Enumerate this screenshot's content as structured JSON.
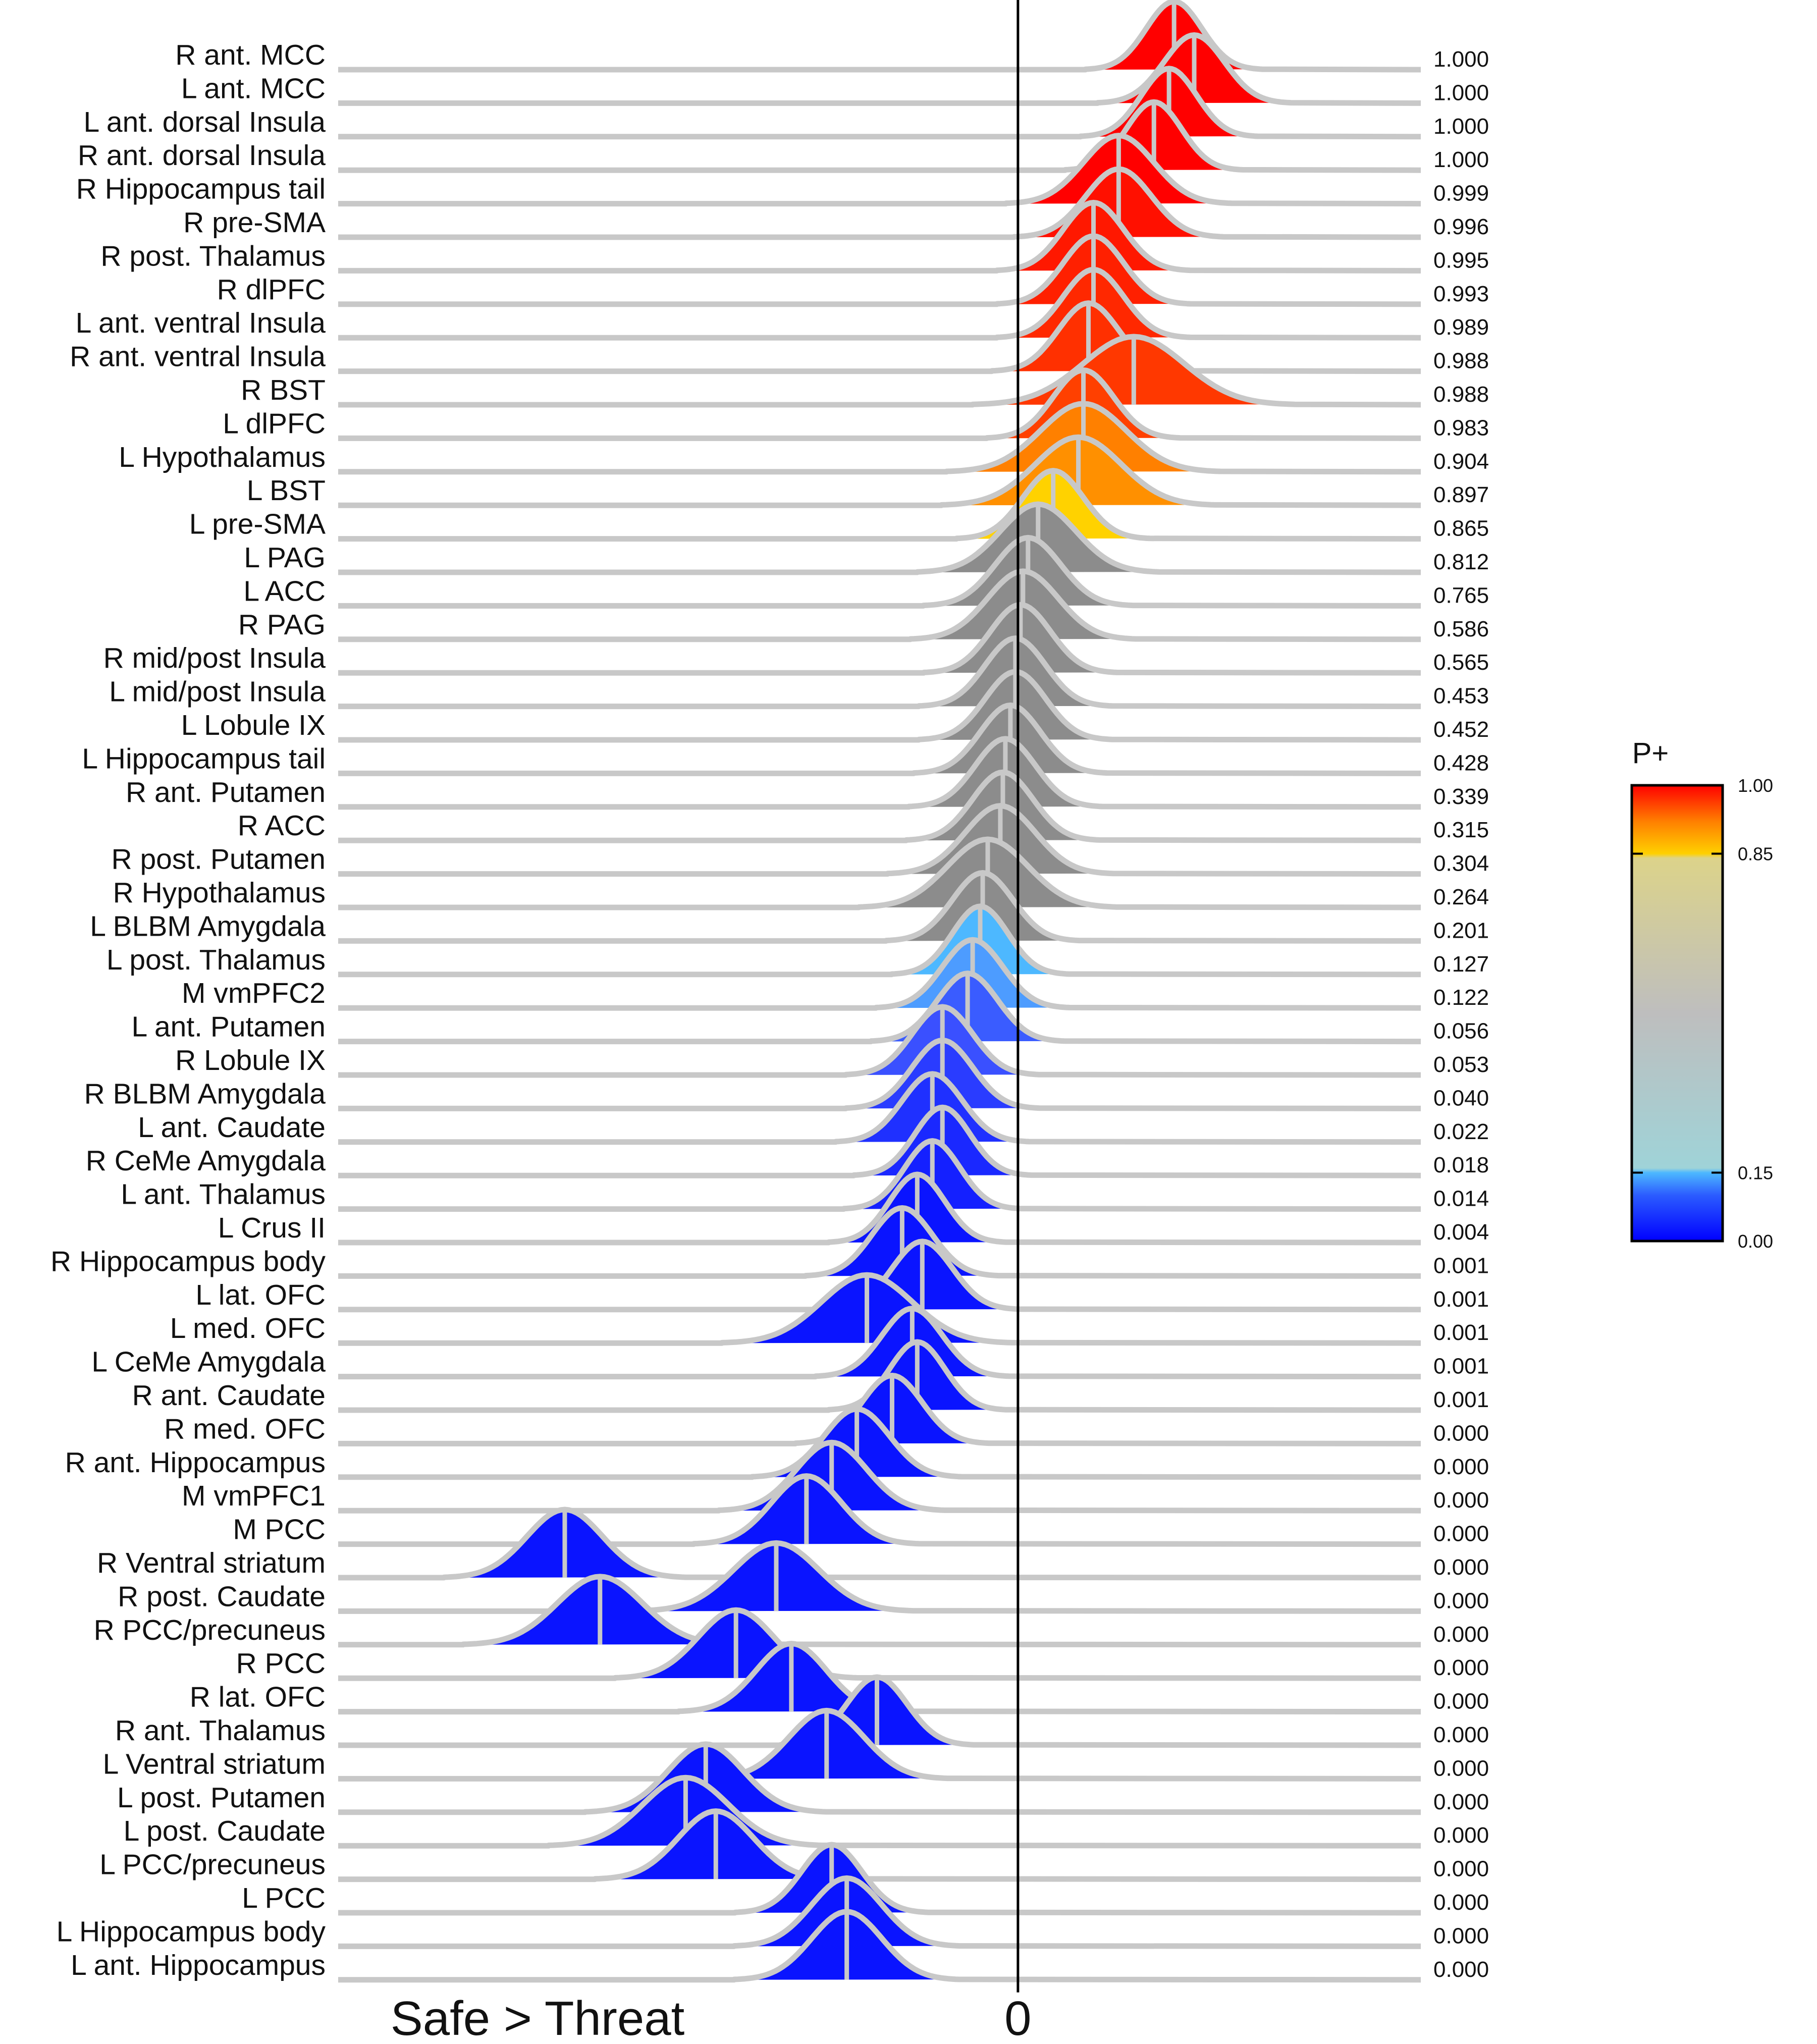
{
  "chart_data": {
    "type": "ridgeline",
    "title": "",
    "xlabel": "Safe > Threat",
    "zero_label": "0",
    "xlim": [
      -1.35,
      0.8
    ],
    "colorbar": {
      "title": "P+",
      "ticks": [
        "1.00",
        "0.85",
        "0.15",
        "0.00"
      ],
      "tick_values": [
        1.0,
        0.85,
        0.15,
        0.0
      ]
    },
    "colors": {
      "red": "#ff0000",
      "orange": "#ff8000",
      "yellow": "#ffd200",
      "gray": "#8c8c8c",
      "lightblue": "#4db8ff",
      "blue": "#0a14ff",
      "outline": "#c8c8c8"
    },
    "rows": [
      {
        "label": "R ant. MCC",
        "p": "1.000",
        "mean": 0.31,
        "sd": 0.055,
        "color": "#ff0000"
      },
      {
        "label": "L ant. MCC",
        "p": "1.000",
        "mean": 0.35,
        "sd": 0.06,
        "color": "#ff0000"
      },
      {
        "label": "L ant. dorsal Insula",
        "p": "1.000",
        "mean": 0.3,
        "sd": 0.055,
        "color": "#ff0000"
      },
      {
        "label": "R ant. dorsal Insula",
        "p": "1.000",
        "mean": 0.27,
        "sd": 0.055,
        "color": "#ff0000"
      },
      {
        "label": "R Hippocampus tail",
        "p": "0.999",
        "mean": 0.2,
        "sd": 0.07,
        "color": "#ff0000"
      },
      {
        "label": "R pre-SMA",
        "p": "0.996",
        "mean": 0.2,
        "sd": 0.065,
        "color": "#ff1000"
      },
      {
        "label": "R post. Thalamus",
        "p": "0.995",
        "mean": 0.15,
        "sd": 0.06,
        "color": "#ff1800"
      },
      {
        "label": "R dlPFC",
        "p": "0.993",
        "mean": 0.15,
        "sd": 0.06,
        "color": "#ff2000"
      },
      {
        "label": "L ant. ventral Insula",
        "p": "0.989",
        "mean": 0.15,
        "sd": 0.06,
        "color": "#ff2800"
      },
      {
        "label": "R ant. ventral Insula",
        "p": "0.988",
        "mean": 0.14,
        "sd": 0.06,
        "color": "#ff3000"
      },
      {
        "label": "R BST",
        "p": "0.988",
        "mean": 0.23,
        "sd": 0.1,
        "color": "#ff3800"
      },
      {
        "label": "L dlPFC",
        "p": "0.983",
        "mean": 0.13,
        "sd": 0.06,
        "color": "#ff4000"
      },
      {
        "label": "L Hypothalamus",
        "p": "0.904",
        "mean": 0.13,
        "sd": 0.085,
        "color": "#ff8000"
      },
      {
        "label": "L BST",
        "p": "0.897",
        "mean": 0.12,
        "sd": 0.085,
        "color": "#ff9000"
      },
      {
        "label": "L pre-SMA",
        "p": "0.865",
        "mean": 0.07,
        "sd": 0.06,
        "color": "#ffd200"
      },
      {
        "label": "L PAG",
        "p": "0.812",
        "mean": 0.04,
        "sd": 0.075,
        "color": "#8c8c8c"
      },
      {
        "label": "L ACC",
        "p": "0.765",
        "mean": 0.02,
        "sd": 0.065,
        "color": "#8c8c8c"
      },
      {
        "label": "R PAG",
        "p": "0.586",
        "mean": 0.01,
        "sd": 0.07,
        "color": "#8c8c8c"
      },
      {
        "label": "R mid/post Insula",
        "p": "0.565",
        "mean": 0.005,
        "sd": 0.06,
        "color": "#8c8c8c"
      },
      {
        "label": "L mid/post Insula",
        "p": "0.453",
        "mean": -0.005,
        "sd": 0.06,
        "color": "#8c8c8c"
      },
      {
        "label": "L Lobule IX",
        "p": "0.452",
        "mean": -0.005,
        "sd": 0.06,
        "color": "#8c8c8c"
      },
      {
        "label": "L Hippocampus tail",
        "p": "0.428",
        "mean": -0.015,
        "sd": 0.06,
        "color": "#8c8c8c"
      },
      {
        "label": "R ant. Putamen",
        "p": "0.339",
        "mean": -0.025,
        "sd": 0.06,
        "color": "#8c8c8c"
      },
      {
        "label": "R ACC",
        "p": "0.315",
        "mean": -0.03,
        "sd": 0.06,
        "color": "#8c8c8c"
      },
      {
        "label": "R post. Putamen",
        "p": "0.304",
        "mean": -0.035,
        "sd": 0.07,
        "color": "#8c8c8c"
      },
      {
        "label": "R Hypothalamus",
        "p": "0.264",
        "mean": -0.06,
        "sd": 0.08,
        "color": "#8c8c8c"
      },
      {
        "label": "L BLBM Amygdala",
        "p": "0.201",
        "mean": -0.07,
        "sd": 0.06,
        "color": "#8c8c8c"
      },
      {
        "label": "L post. Thalamus",
        "p": "0.127",
        "mean": -0.075,
        "sd": 0.055,
        "color": "#4db8ff"
      },
      {
        "label": "M vmPFC2",
        "p": "0.122",
        "mean": -0.09,
        "sd": 0.06,
        "color": "#4d9cff"
      },
      {
        "label": "L ant. Putamen",
        "p": "0.056",
        "mean": -0.1,
        "sd": 0.06,
        "color": "#3a5cff"
      },
      {
        "label": "R Lobule IX",
        "p": "0.053",
        "mean": -0.15,
        "sd": 0.06,
        "color": "#3a50ff"
      },
      {
        "label": "R BLBM Amygdala",
        "p": "0.040",
        "mean": -0.15,
        "sd": 0.06,
        "color": "#2a3cff"
      },
      {
        "label": "L ant. Caudate",
        "p": "0.022",
        "mean": -0.17,
        "sd": 0.06,
        "color": "#1f30ff"
      },
      {
        "label": "R CeMe Amygdala",
        "p": "0.018",
        "mean": -0.15,
        "sd": 0.055,
        "color": "#1a28ff"
      },
      {
        "label": "L ant. Thalamus",
        "p": "0.014",
        "mean": -0.17,
        "sd": 0.055,
        "color": "#1420ff"
      },
      {
        "label": "L Crus II",
        "p": "0.004",
        "mean": -0.2,
        "sd": 0.055,
        "color": "#0a14ff"
      },
      {
        "label": "R Hippocampus body",
        "p": "0.001",
        "mean": -0.23,
        "sd": 0.06,
        "color": "#0a14ff"
      },
      {
        "label": "L lat. OFC",
        "p": "0.001",
        "mean": -0.19,
        "sd": 0.06,
        "color": "#0a14ff"
      },
      {
        "label": "L med. OFC",
        "p": "0.001",
        "mean": -0.3,
        "sd": 0.09,
        "color": "#0a14ff"
      },
      {
        "label": "L CeMe Amygdala",
        "p": "0.001",
        "mean": -0.21,
        "sd": 0.06,
        "color": "#0a14ff"
      },
      {
        "label": "R ant. Caudate",
        "p": "0.001",
        "mean": -0.2,
        "sd": 0.055,
        "color": "#0a14ff"
      },
      {
        "label": "R med. OFC",
        "p": "0.000",
        "mean": -0.25,
        "sd": 0.06,
        "color": "#0a14ff"
      },
      {
        "label": "R ant. Hippocampus",
        "p": "0.000",
        "mean": -0.32,
        "sd": 0.065,
        "color": "#0a14ff"
      },
      {
        "label": "M vmPFC1",
        "p": "0.000",
        "mean": -0.37,
        "sd": 0.07,
        "color": "#0a14ff"
      },
      {
        "label": "M PCC",
        "p": "0.000",
        "mean": -0.42,
        "sd": 0.07,
        "color": "#0a14ff"
      },
      {
        "label": "R Ventral striatum",
        "p": "0.000",
        "mean": -0.9,
        "sd": 0.075,
        "color": "#0a14ff"
      },
      {
        "label": "R post. Caudate",
        "p": "0.000",
        "mean": -0.48,
        "sd": 0.085,
        "color": "#0a14ff"
      },
      {
        "label": "R PCC/precuneus",
        "p": "0.000",
        "mean": -0.83,
        "sd": 0.085,
        "color": "#0a14ff"
      },
      {
        "label": "R PCC",
        "p": "0.000",
        "mean": -0.56,
        "sd": 0.075,
        "color": "#0a14ff"
      },
      {
        "label": "R lat. OFC",
        "p": "0.000",
        "mean": -0.45,
        "sd": 0.07,
        "color": "#0a14ff"
      },
      {
        "label": "R ant. Thalamus",
        "p": "0.000",
        "mean": -0.28,
        "sd": 0.06,
        "color": "#0a14ff"
      },
      {
        "label": "L Ventral striatum",
        "p": "0.000",
        "mean": -0.38,
        "sd": 0.075,
        "color": "#0a14ff"
      },
      {
        "label": "L post. Putamen",
        "p": "0.000",
        "mean": -0.62,
        "sd": 0.075,
        "color": "#0a14ff"
      },
      {
        "label": "L post. Caudate",
        "p": "0.000",
        "mean": -0.66,
        "sd": 0.085,
        "color": "#0a14ff"
      },
      {
        "label": "L PCC/precuneus",
        "p": "0.000",
        "mean": -0.6,
        "sd": 0.075,
        "color": "#0a14ff"
      },
      {
        "label": "L PCC",
        "p": "0.000",
        "mean": -0.37,
        "sd": 0.06,
        "color": "#0a14ff"
      },
      {
        "label": "L Hippocampus body",
        "p": "0.000",
        "mean": -0.34,
        "sd": 0.07,
        "color": "#0a14ff"
      },
      {
        "label": "L ant. Hippocampus",
        "p": "0.000",
        "mean": -0.34,
        "sd": 0.07,
        "color": "#0a14ff"
      }
    ]
  }
}
